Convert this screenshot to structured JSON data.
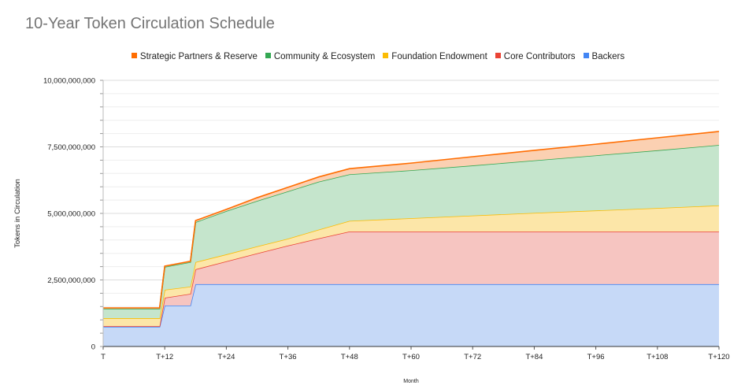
{
  "chart_data": {
    "type": "area",
    "stacked": true,
    "title": "10-Year Token Circulation Schedule",
    "xlabel": "Month",
    "ylabel": "Tokens in Circulation",
    "ylim": [
      0,
      10000000000
    ],
    "xlim": [
      0,
      120
    ],
    "y_ticks": [
      "0",
      "2,500,000,000",
      "5,000,000,000",
      "7,500,000,000",
      "10,000,000,000"
    ],
    "y_tick_values": [
      0,
      2500000000,
      5000000000,
      7500000000,
      10000000000
    ],
    "x_ticks": [
      "T",
      "T+12",
      "T+24",
      "T+36",
      "T+48",
      "T+60",
      "T+72",
      "T+84",
      "T+96",
      "T+108",
      "T+120"
    ],
    "x_tick_values": [
      0,
      12,
      24,
      36,
      48,
      60,
      72,
      84,
      96,
      108,
      120
    ],
    "grid": true,
    "legend_position": "top",
    "x": [
      0,
      11,
      12,
      17,
      18,
      24,
      30,
      36,
      42,
      48,
      60,
      72,
      84,
      96,
      108,
      120
    ],
    "series": [
      {
        "name": "Backers",
        "color": "#4285f4",
        "fill": "#c6d9f7",
        "values": [
          740000000,
          740000000,
          1540000000,
          1540000000,
          2340000000,
          2340000000,
          2340000000,
          2340000000,
          2340000000,
          2340000000,
          2340000000,
          2340000000,
          2340000000,
          2340000000,
          2340000000,
          2340000000
        ]
      },
      {
        "name": "Core Contributors",
        "color": "#ea4335",
        "fill": "#f6c5c1",
        "values": [
          30000000,
          30000000,
          290000000,
          440000000,
          560000000,
          860000000,
          1160000000,
          1450000000,
          1720000000,
          1980000000,
          1980000000,
          1980000000,
          1980000000,
          1980000000,
          1980000000,
          1980000000
        ]
      },
      {
        "name": "Foundation Endowment",
        "color": "#fbbc04",
        "fill": "#fce6a8",
        "values": [
          290000000,
          290000000,
          300000000,
          270000000,
          270000000,
          260000000,
          260000000,
          260000000,
          330000000,
          400000000,
          500000000,
          600000000,
          700000000,
          790000000,
          880000000,
          980000000
        ]
      },
      {
        "name": "Community & Ecosystem",
        "color": "#34a853",
        "fill": "#c5e5cc",
        "values": [
          360000000,
          360000000,
          860000000,
          920000000,
          1500000000,
          1630000000,
          1710000000,
          1780000000,
          1800000000,
          1750000000,
          1800000000,
          1880000000,
          1970000000,
          2070000000,
          2170000000,
          2270000000
        ]
      },
      {
        "name": "Strategic Partners & Reserve",
        "color": "#ff6d01",
        "fill": "#fbd0b2",
        "values": [
          30000000,
          30000000,
          30000000,
          30000000,
          60000000,
          60000000,
          120000000,
          150000000,
          180000000,
          210000000,
          270000000,
          330000000,
          380000000,
          420000000,
          470000000,
          510000000
        ]
      }
    ],
    "legend_order": [
      "Strategic Partners & Reserve",
      "Community & Ecosystem",
      "Foundation Endowment",
      "Core Contributors",
      "Backers"
    ]
  }
}
